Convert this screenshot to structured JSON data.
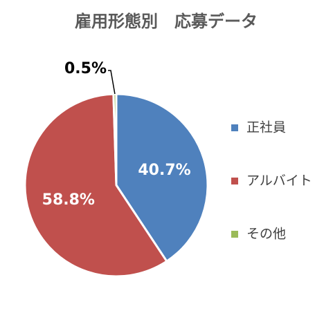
{
  "chart_data": {
    "type": "pie",
    "title": "雇用形態別　応募データ",
    "categories": [
      "正社員",
      "アルバイト",
      "その他"
    ],
    "values": [
      40.7,
      58.8,
      0.5
    ],
    "value_labels": [
      "40.7%",
      "58.8%",
      "0.5%"
    ],
    "colors": [
      "#4f81bd",
      "#c0504d",
      "#9bbb59"
    ],
    "legend": "right"
  }
}
